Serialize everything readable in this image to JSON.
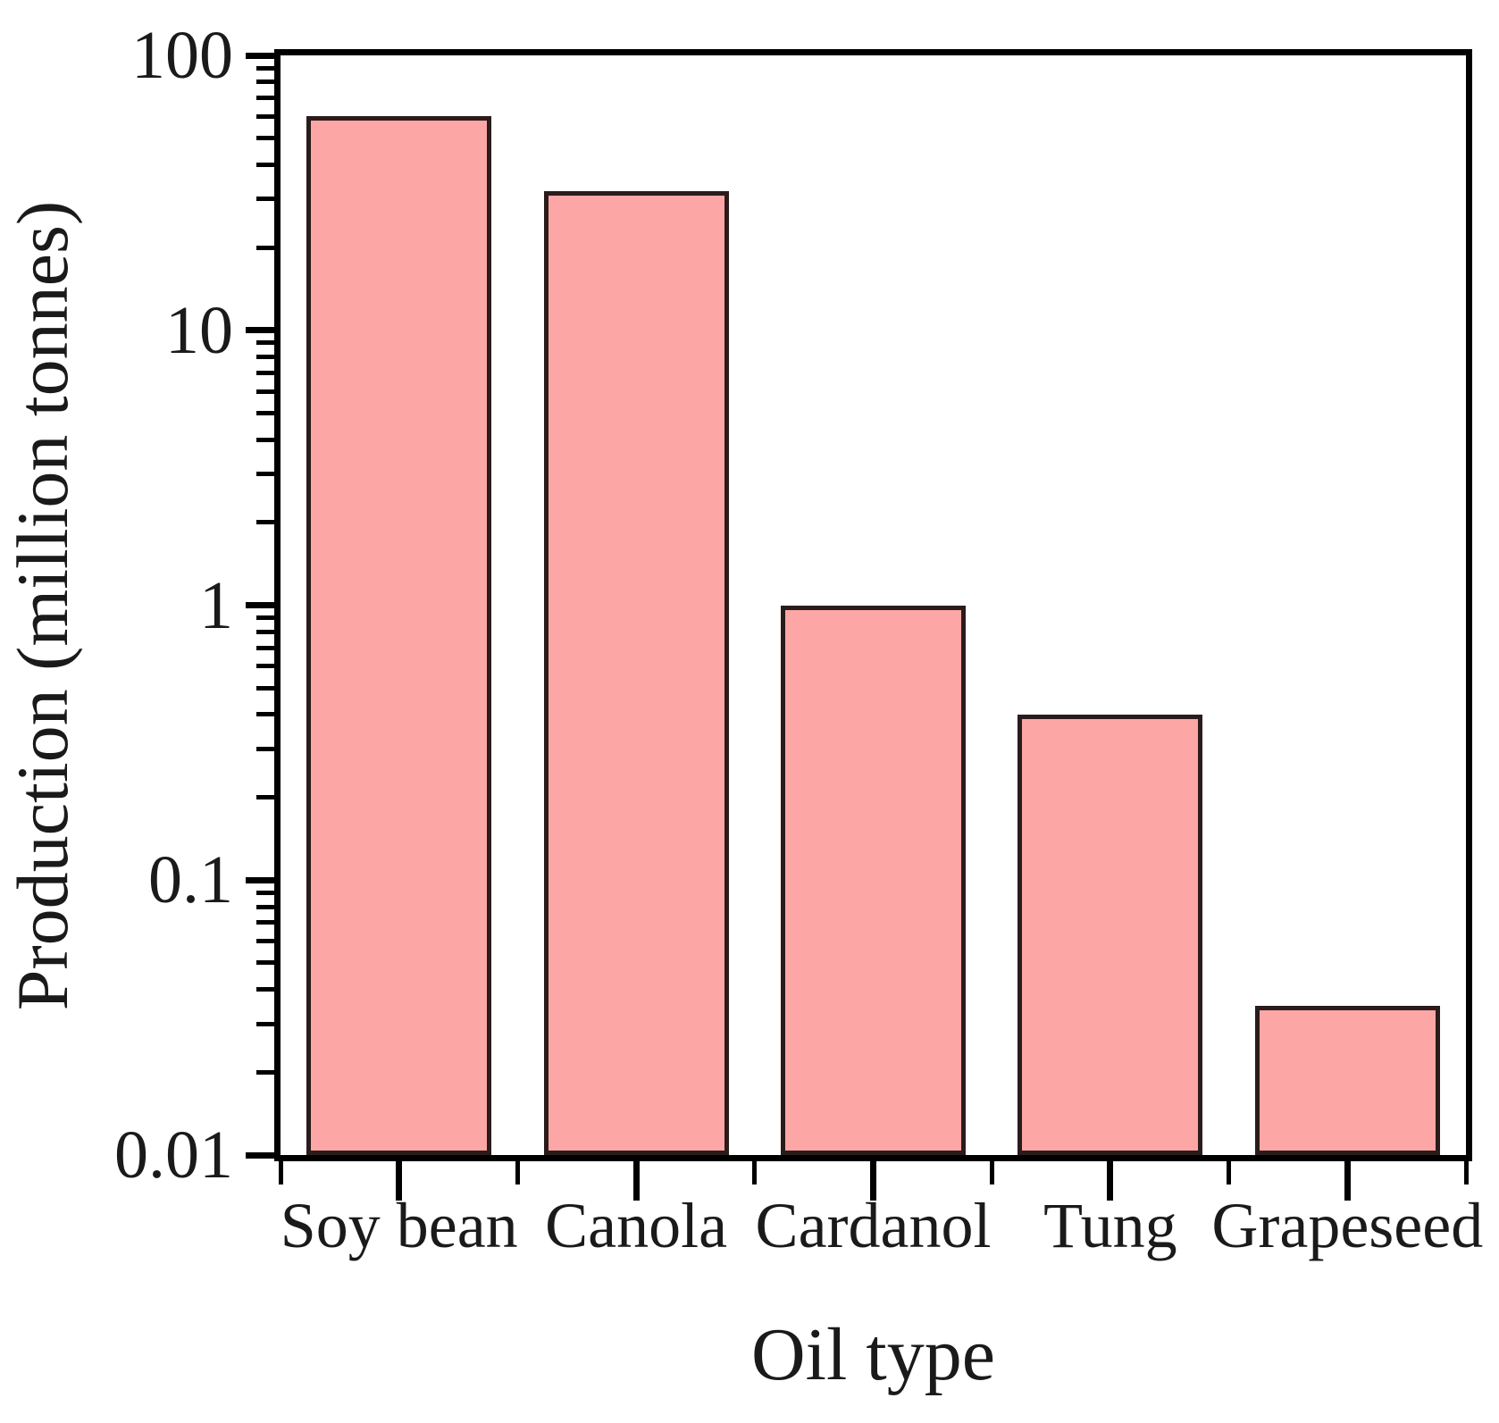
{
  "figure": {
    "background_color": "#ffffff",
    "text_color": "#1a1a1a"
  },
  "chart_data": {
    "type": "bar",
    "title": "",
    "categories": [
      "Soy bean",
      "Canola",
      "Cardanol",
      "Tung",
      "Grapeseed"
    ],
    "values": [
      60,
      32,
      1,
      0.4,
      0.035
    ],
    "xlabel": "Oil type",
    "ylabel": "Production (million tonnes)",
    "yscale": "log",
    "ylim": [
      0.01,
      100
    ],
    "ytick_values": [
      100,
      10,
      1,
      0.1,
      0.01
    ],
    "ytick_labels": [
      "100",
      "10",
      "1",
      "0.1",
      "0.01"
    ],
    "grid": false,
    "legend": false,
    "bar_fill_color": "#FCA7A5",
    "bar_border_color": "#2b1b1b",
    "axis_color": "#000000"
  }
}
